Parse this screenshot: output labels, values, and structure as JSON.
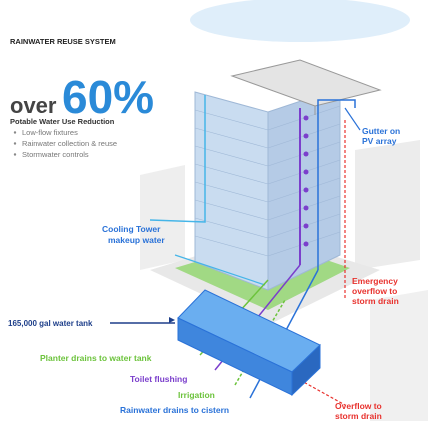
{
  "header": {
    "title": "RAINWATER REUSE SYSTEM"
  },
  "headline": {
    "prefix": "over",
    "figure": "60%",
    "caption": "Potable Water Use Reduction",
    "bullets": [
      "Low-flow fixtures",
      "Rainwater collection & reuse",
      "Stormwater controls"
    ]
  },
  "labels": {
    "gutter": [
      "Gutter on",
      "PV array"
    ],
    "cooling": [
      "Cooling Tower",
      "makeup water"
    ],
    "emergency": [
      "Emergency",
      "overflow to",
      "storm drain"
    ],
    "tank": "165,000 gal water tank",
    "planter": "Planter drains to water tank",
    "toilet": "Toilet flushing",
    "irrigation": "Irrigation",
    "cistern": "Rainwater drains to cistern",
    "overflow": [
      "Overflow to",
      "storm drain"
    ]
  }
}
